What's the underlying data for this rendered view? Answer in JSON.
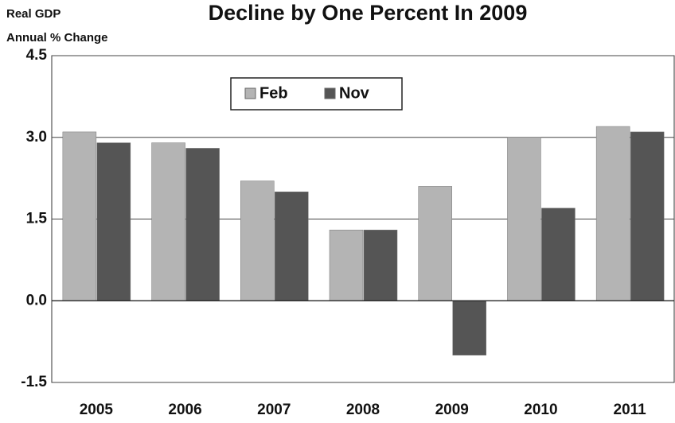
{
  "chart_data": {
    "type": "bar",
    "title": "Decline by One Percent In 2009",
    "ylabel": [
      "Real GDP",
      "Annual % Change"
    ],
    "categories": [
      "2005",
      "2006",
      "2007",
      "2008",
      "2009",
      "2010",
      "2011"
    ],
    "series": [
      {
        "name": "Feb",
        "color": "#b4b4b4",
        "values": [
          3.1,
          2.9,
          2.2,
          1.3,
          2.1,
          3.0,
          3.2
        ]
      },
      {
        "name": "Nov",
        "color": "#555555",
        "values": [
          2.9,
          2.8,
          2.0,
          1.3,
          -1.0,
          1.7,
          3.1
        ]
      }
    ],
    "ylim": [
      -1.5,
      4.5
    ],
    "yticks": [
      -1.5,
      {
        "value": 0,
        "label": "0.0"
      },
      1.5,
      {
        "value": 3,
        "label": "3.0"
      },
      4.5
    ],
    "grid": true
  }
}
